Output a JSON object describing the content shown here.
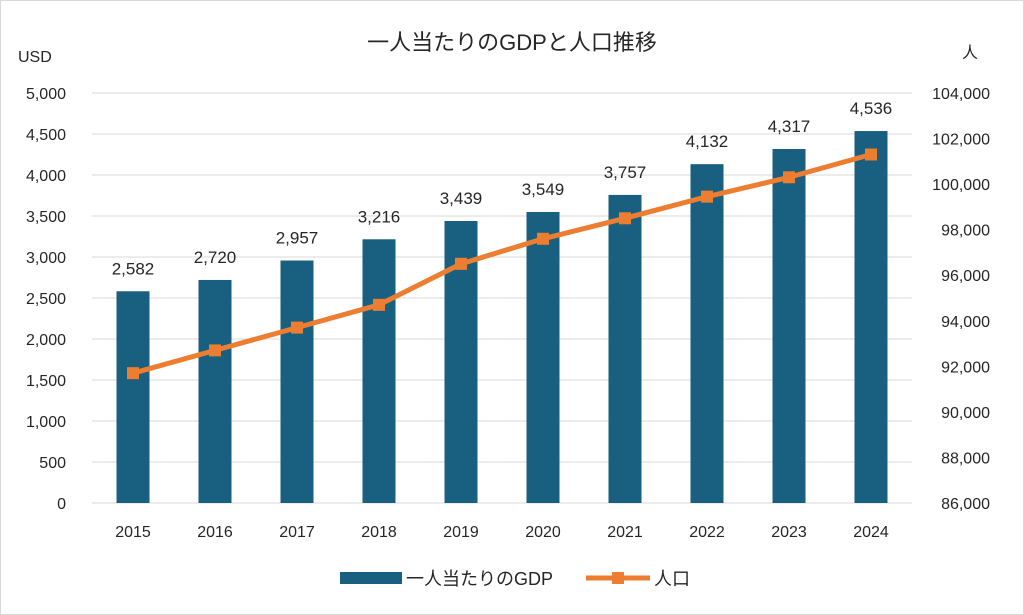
{
  "chart_data": {
    "type": "bar+line",
    "title": "一人当たりのGDPと人口推移",
    "categories": [
      "2015",
      "2016",
      "2017",
      "2018",
      "2019",
      "2020",
      "2021",
      "2022",
      "2023",
      "2024"
    ],
    "left_axis": {
      "unit": "USD",
      "ylim": [
        0,
        5000
      ],
      "ticks": [
        0,
        500,
        1000,
        1500,
        2000,
        2500,
        3000,
        3500,
        4000,
        4500,
        5000
      ],
      "tick_labels": [
        "0",
        "500",
        "1,000",
        "1,500",
        "2,000",
        "2,500",
        "3,000",
        "3,500",
        "4,000",
        "4,500",
        "5,000"
      ]
    },
    "right_axis": {
      "unit": "人",
      "ylim": [
        86000,
        104000
      ],
      "ticks": [
        86000,
        88000,
        90000,
        92000,
        94000,
        96000,
        98000,
        100000,
        102000,
        104000
      ],
      "tick_labels": [
        "86,000",
        "88,000",
        "90,000",
        "92,000",
        "94,000",
        "96,000",
        "98,000",
        "100,000",
        "102,000",
        "104,000"
      ]
    },
    "grid": true,
    "legend_position": "bottom",
    "series": [
      {
        "name": "一人当たりのGDP",
        "type": "bar",
        "axis": "left",
        "color": "#185f80",
        "values": [
          2582,
          2720,
          2957,
          3216,
          3439,
          3549,
          3757,
          4132,
          4317,
          4536
        ],
        "labels": [
          "2,582",
          "2,720",
          "2,957",
          "3,216",
          "3,439",
          "3,549",
          "3,757",
          "4,132",
          "4,317",
          "4,536"
        ]
      },
      {
        "name": "人口",
        "type": "line",
        "axis": "right",
        "color": "#ed7d31",
        "marker": "square",
        "values": [
          91700,
          92700,
          93700,
          94700,
          96500,
          97600,
          98500,
          99450,
          100300,
          101300
        ]
      }
    ]
  }
}
